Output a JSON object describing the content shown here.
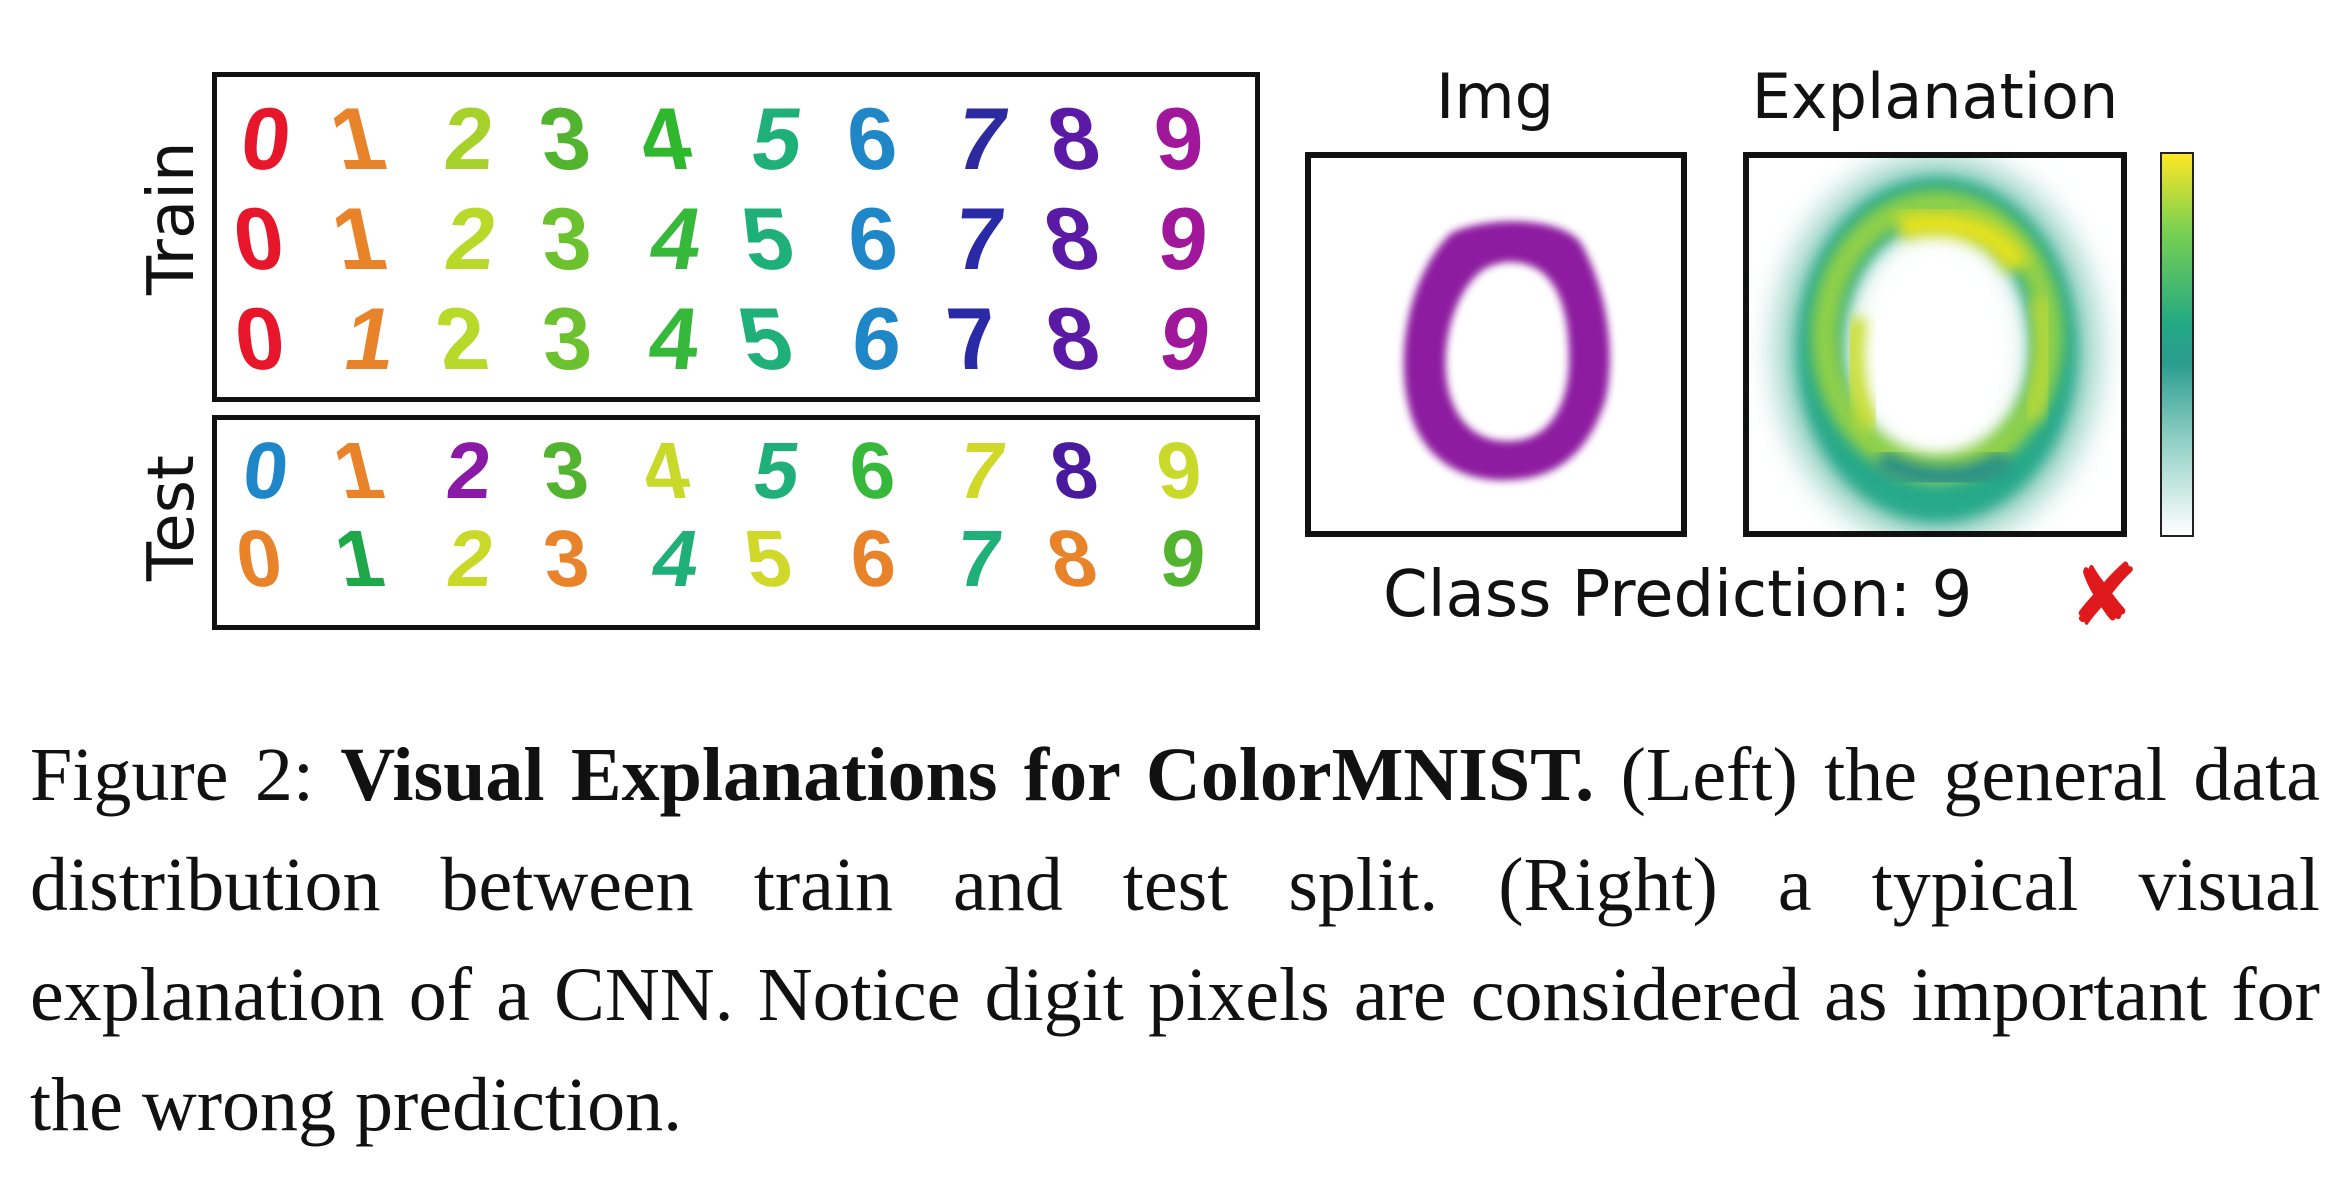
{
  "figure": {
    "row_labels": {
      "train": "Train",
      "test": "Test"
    },
    "train_rows": [
      {
        "digits": [
          "0",
          "1",
          "2",
          "3",
          "4",
          "5",
          "6",
          "7",
          "8",
          "9"
        ],
        "colors": [
          "#e8162a",
          "#e8832a",
          "#a6d12a",
          "#52b32e",
          "#2fb82e",
          "#1fb07a",
          "#1f86c8",
          "#2c2a9e",
          "#5a1aa6",
          "#a1179b"
        ]
      },
      {
        "digits": [
          "0",
          "1",
          "2",
          "3",
          "4",
          "5",
          "6",
          "7",
          "8",
          "9"
        ],
        "colors": [
          "#e8162a",
          "#e8832a",
          "#b8d82a",
          "#6cc12e",
          "#36b83a",
          "#1fb07a",
          "#1f86c8",
          "#2b2aa6",
          "#5a1aa6",
          "#a1179b"
        ]
      },
      {
        "digits": [
          "0",
          "1",
          "2",
          "3",
          "4",
          "5",
          "6",
          "7",
          "8",
          "9"
        ],
        "colors": [
          "#e8162a",
          "#e8832a",
          "#b8d82a",
          "#6cc12e",
          "#36b83a",
          "#1fb07a",
          "#1f86c8",
          "#2b2aa6",
          "#5a1aa6",
          "#a1179b"
        ]
      }
    ],
    "test_rows": [
      {
        "digits": [
          "0",
          "1",
          "2",
          "3",
          "4",
          "5",
          "6",
          "7",
          "8",
          "9"
        ],
        "colors": [
          "#1f86c8",
          "#e8832a",
          "#8a1aa6",
          "#52b32e",
          "#c9d92a",
          "#1fb07a",
          "#36b83a",
          "#d0d82a",
          "#4a1a9e",
          "#c9d92a"
        ]
      },
      {
        "digits": [
          "0",
          "1",
          "2",
          "3",
          "4",
          "5",
          "6",
          "7",
          "8",
          "9"
        ],
        "colors": [
          "#e8832a",
          "#1fa84a",
          "#c9d92a",
          "#e8832a",
          "#1fb07a",
          "#d0d82a",
          "#e8832a",
          "#1fb07a",
          "#e8832a",
          "#52b32e"
        ]
      }
    ],
    "img_title": "Img",
    "explanation_title": "Explanation",
    "img_digit_color": "#8e1fa0",
    "prediction_text": "Class Prediction: 9",
    "wrong_mark": "✘",
    "colorbar_colors": [
      "#fde725",
      "#22a884",
      "#ffffff"
    ]
  },
  "caption": {
    "label": "Figure 2:",
    "bold_title": "Visual Explanations for ColorMNIST.",
    "body": "(Left) the general data distribution between train and test split. (Right) a typical visual explanation of a CNN. Notice digit pixels are considered as important for the wrong prediction."
  }
}
